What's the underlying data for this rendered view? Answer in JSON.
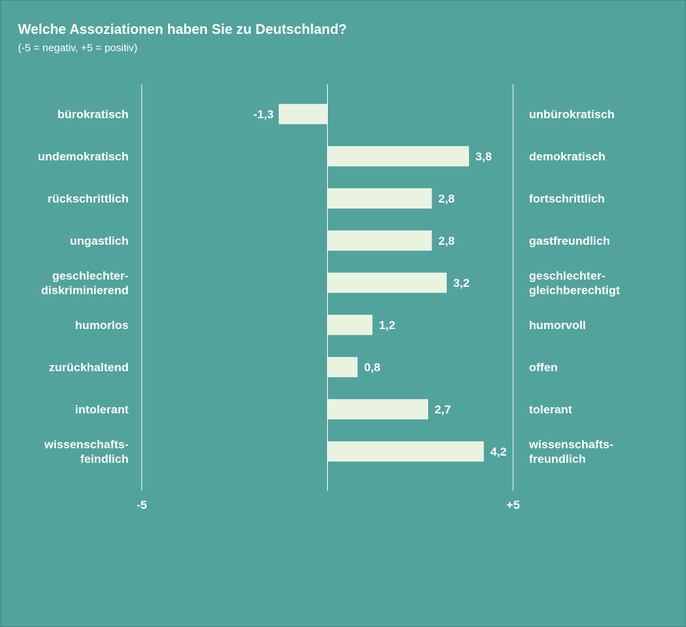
{
  "chart_data": {
    "type": "bar",
    "orientation": "horizontal",
    "title": "Welche Assoziationen haben Sie zu Deutschland?",
    "subtitle": "(-5 = negativ, +5 = positiv)",
    "xlim": [
      -5,
      5
    ],
    "x_tick_labels": [
      "-5",
      "+5"
    ],
    "x_tick_values": [
      -5,
      5
    ],
    "grid": false,
    "colors": {
      "background": "#52a39b",
      "bar": "#e9f3df",
      "text": "#ffffff",
      "axis": "#ffffff"
    },
    "items": [
      {
        "left": "bürokratisch",
        "right": "unbürokratisch",
        "value": -1.3,
        "label": "-1,3"
      },
      {
        "left": "undemokratisch",
        "right": "demokratisch",
        "value": 3.8,
        "label": "3,8"
      },
      {
        "left": "rückschrittlich",
        "right": "fortschrittlich",
        "value": 2.8,
        "label": "2,8"
      },
      {
        "left": "ungastlich",
        "right": "gastfreundlich",
        "value": 2.8,
        "label": "2,8"
      },
      {
        "left": "geschlechter-\ndiskriminierend",
        "right": "geschlechter-\ngleichberechtigt",
        "value": 3.2,
        "label": "3,2"
      },
      {
        "left": "humorlos",
        "right": "humorvoll",
        "value": 1.2,
        "label": "1,2"
      },
      {
        "left": "zurückhaltend",
        "right": "offen",
        "value": 0.8,
        "label": "0,8"
      },
      {
        "left": "intolerant",
        "right": "tolerant",
        "value": 2.7,
        "label": "2,7"
      },
      {
        "left": "wissenschafts-\nfeindlich",
        "right": "wissenschafts-\nfreundlich",
        "value": 4.2,
        "label": "4,2"
      }
    ]
  }
}
